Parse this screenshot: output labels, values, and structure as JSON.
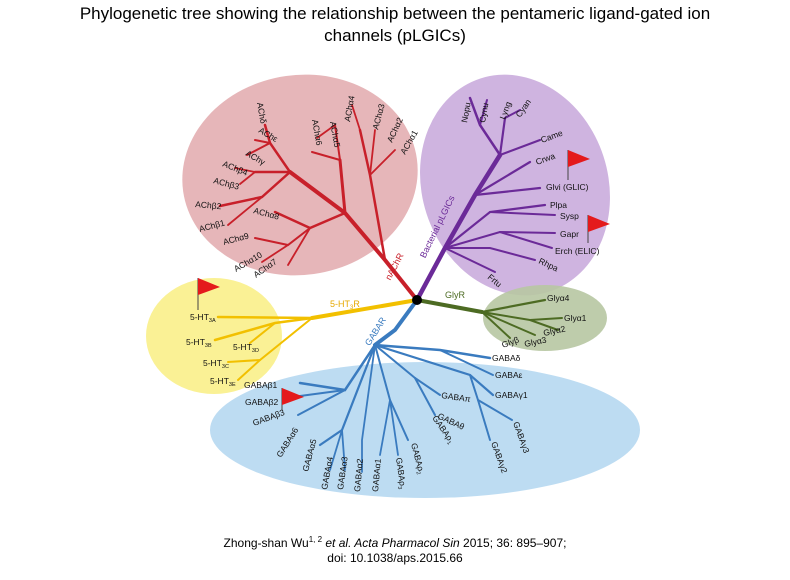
{
  "title": {
    "line1": "Phylogenetic tree showing the relationship between the pentameric ligand-gated ion",
    "line2": "channels (pLGICs)"
  },
  "groups": {
    "nachr": "nAChR",
    "bacterial": "Bacterial pLGICs",
    "ht3r_main": "5-HT",
    "ht3r_sub": "3",
    "ht3r_end": "R",
    "glyr": "GlyR",
    "gabar": "GABAR"
  },
  "colors": {
    "nachr": "#c8202a",
    "nachr_bg": "#e2a9ad",
    "bacterial": "#6b2a98",
    "bacterial_bg": "#c7a7da",
    "ht3r": "#f2c000",
    "ht3r_bg": "#faf08a",
    "glyr": "#4d6b23",
    "glyr_bg": "#b7c6a2",
    "gabar": "#3a7bbf",
    "gabar_bg": "#b6d8f1",
    "flag": "#e41a1c"
  },
  "leaves": {
    "nachr": [
      "AChε",
      "AChδ",
      "AChγ",
      "AChβ″4",
      "AChβ3",
      "AChβ2",
      "AChβ1",
      "AChα8",
      "AChα9",
      "AChα10",
      "AChα7",
      "AChα6",
      "AChα5",
      "AChα4",
      "AChα3",
      "AChα2",
      "AChα1"
    ],
    "bacterial": [
      "Nopu",
      "Cynu",
      "Lyng",
      "Cyan",
      "Came",
      "Crwa",
      "Glvi (GLIC)",
      "Plpa",
      "Sysp",
      "Gapr",
      "Erch (ELIC)",
      "Rhpa",
      "Frtu"
    ],
    "glyr": [
      "Glyα4",
      "Glyα1",
      "Glyα2",
      "Glyα3",
      "Glyβ"
    ],
    "gabar": [
      "GABAδ",
      "GABAε",
      "GABAγ1",
      "GABAπ",
      "GABAθ",
      "GABAγ3",
      "GABAγ2",
      "GABAβ1",
      "GABAβ2",
      "GABAβ3",
      "GABAα6",
      "GABAα5",
      "GABAα4",
      "GABAα3",
      "GABAα2",
      "GABAα1",
      "GABAρ₃"
    ],
    "gabar_rho_base": "GABAρ",
    "gabar_rho_subs": [
      "1",
      "2",
      "3"
    ],
    "ht3r_base": "5-HT",
    "ht3r_subs": [
      "3A",
      "3B",
      "3D",
      "3C",
      "3E"
    ]
  },
  "citation": {
    "author": "Zhong-shan Wu",
    "author_sup": "1, 2",
    "etal": " et al.",
    "journal": " Acta Pharmacol Sin",
    "ref": " 2015; 36: 895–907;",
    "doi": "doi: 10.1038/aps.2015.66"
  }
}
